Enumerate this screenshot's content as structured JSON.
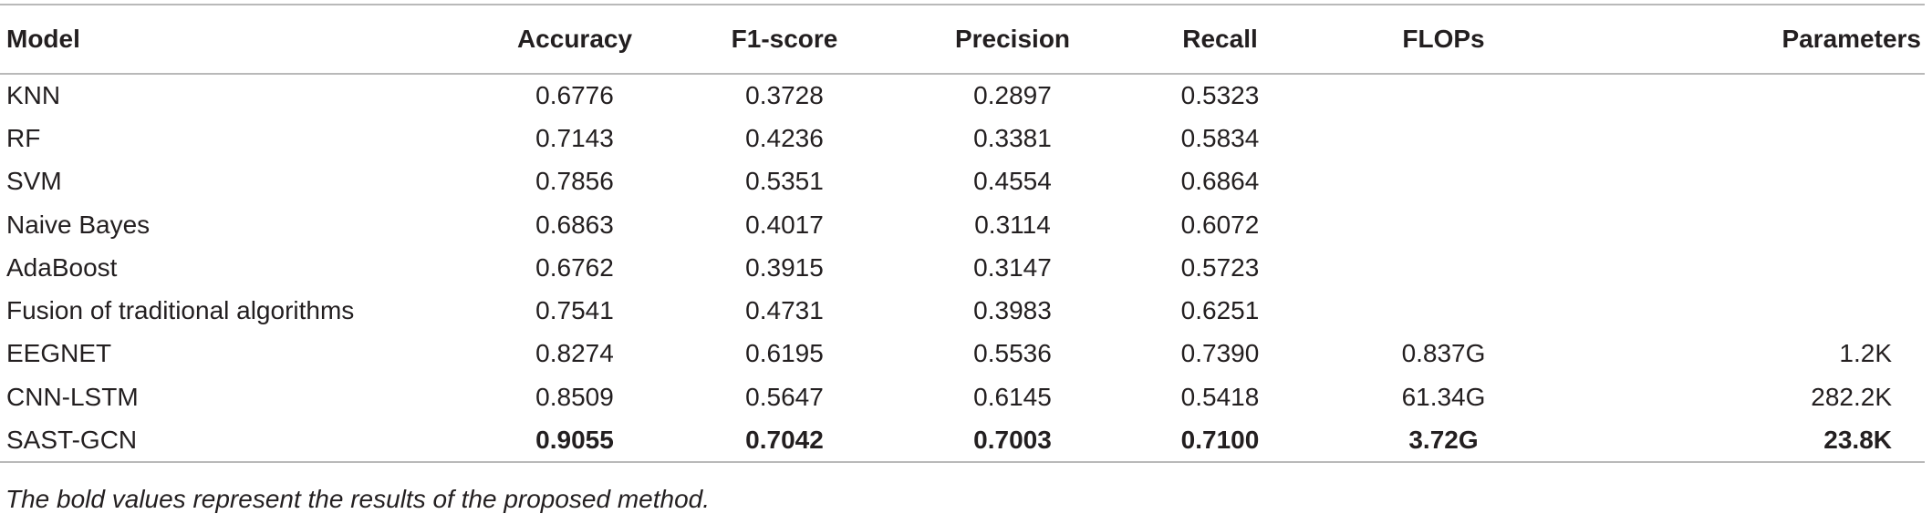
{
  "table": {
    "headers": [
      "Model",
      "Accuracy",
      "F1-score",
      "Precision",
      "Recall",
      "FLOPs",
      "Parameters"
    ],
    "rows": [
      {
        "model": "KNN",
        "accuracy": "0.6776",
        "f1": "0.3728",
        "precision": "0.2897",
        "recall": "0.5323",
        "flops": "",
        "params": ""
      },
      {
        "model": "RF",
        "accuracy": "0.7143",
        "f1": "0.4236",
        "precision": "0.3381",
        "recall": "0.5834",
        "flops": "",
        "params": ""
      },
      {
        "model": "SVM",
        "accuracy": "0.7856",
        "f1": "0.5351",
        "precision": "0.4554",
        "recall": "0.6864",
        "flops": "",
        "params": ""
      },
      {
        "model": "Naive Bayes",
        "accuracy": "0.6863",
        "f1": "0.4017",
        "precision": "0.3114",
        "recall": "0.6072",
        "flops": "",
        "params": ""
      },
      {
        "model": "AdaBoost",
        "accuracy": "0.6762",
        "f1": "0.3915",
        "precision": "0.3147",
        "recall": "0.5723",
        "flops": "",
        "params": ""
      },
      {
        "model": "Fusion of traditional algorithms",
        "accuracy": "0.7541",
        "f1": "0.4731",
        "precision": "0.3983",
        "recall": "0.6251",
        "flops": "",
        "params": ""
      },
      {
        "model": "EEGNET",
        "accuracy": "0.8274",
        "f1": "0.6195",
        "precision": "0.5536",
        "recall": "0.7390",
        "flops": "0.837G",
        "params": "1.2K"
      },
      {
        "model": "CNN-LSTM",
        "accuracy": "0.8509",
        "f1": "0.5647",
        "precision": "0.6145",
        "recall": "0.5418",
        "flops": "61.34G",
        "params": "282.2K"
      },
      {
        "model": "SAST-GCN",
        "accuracy": "0.9055",
        "f1": "0.7042",
        "precision": "0.7003",
        "recall": "0.7100",
        "flops": "3.72G",
        "params": "23.8K",
        "bold": true
      }
    ]
  },
  "footnote": "The bold values represent the results of the proposed method."
}
